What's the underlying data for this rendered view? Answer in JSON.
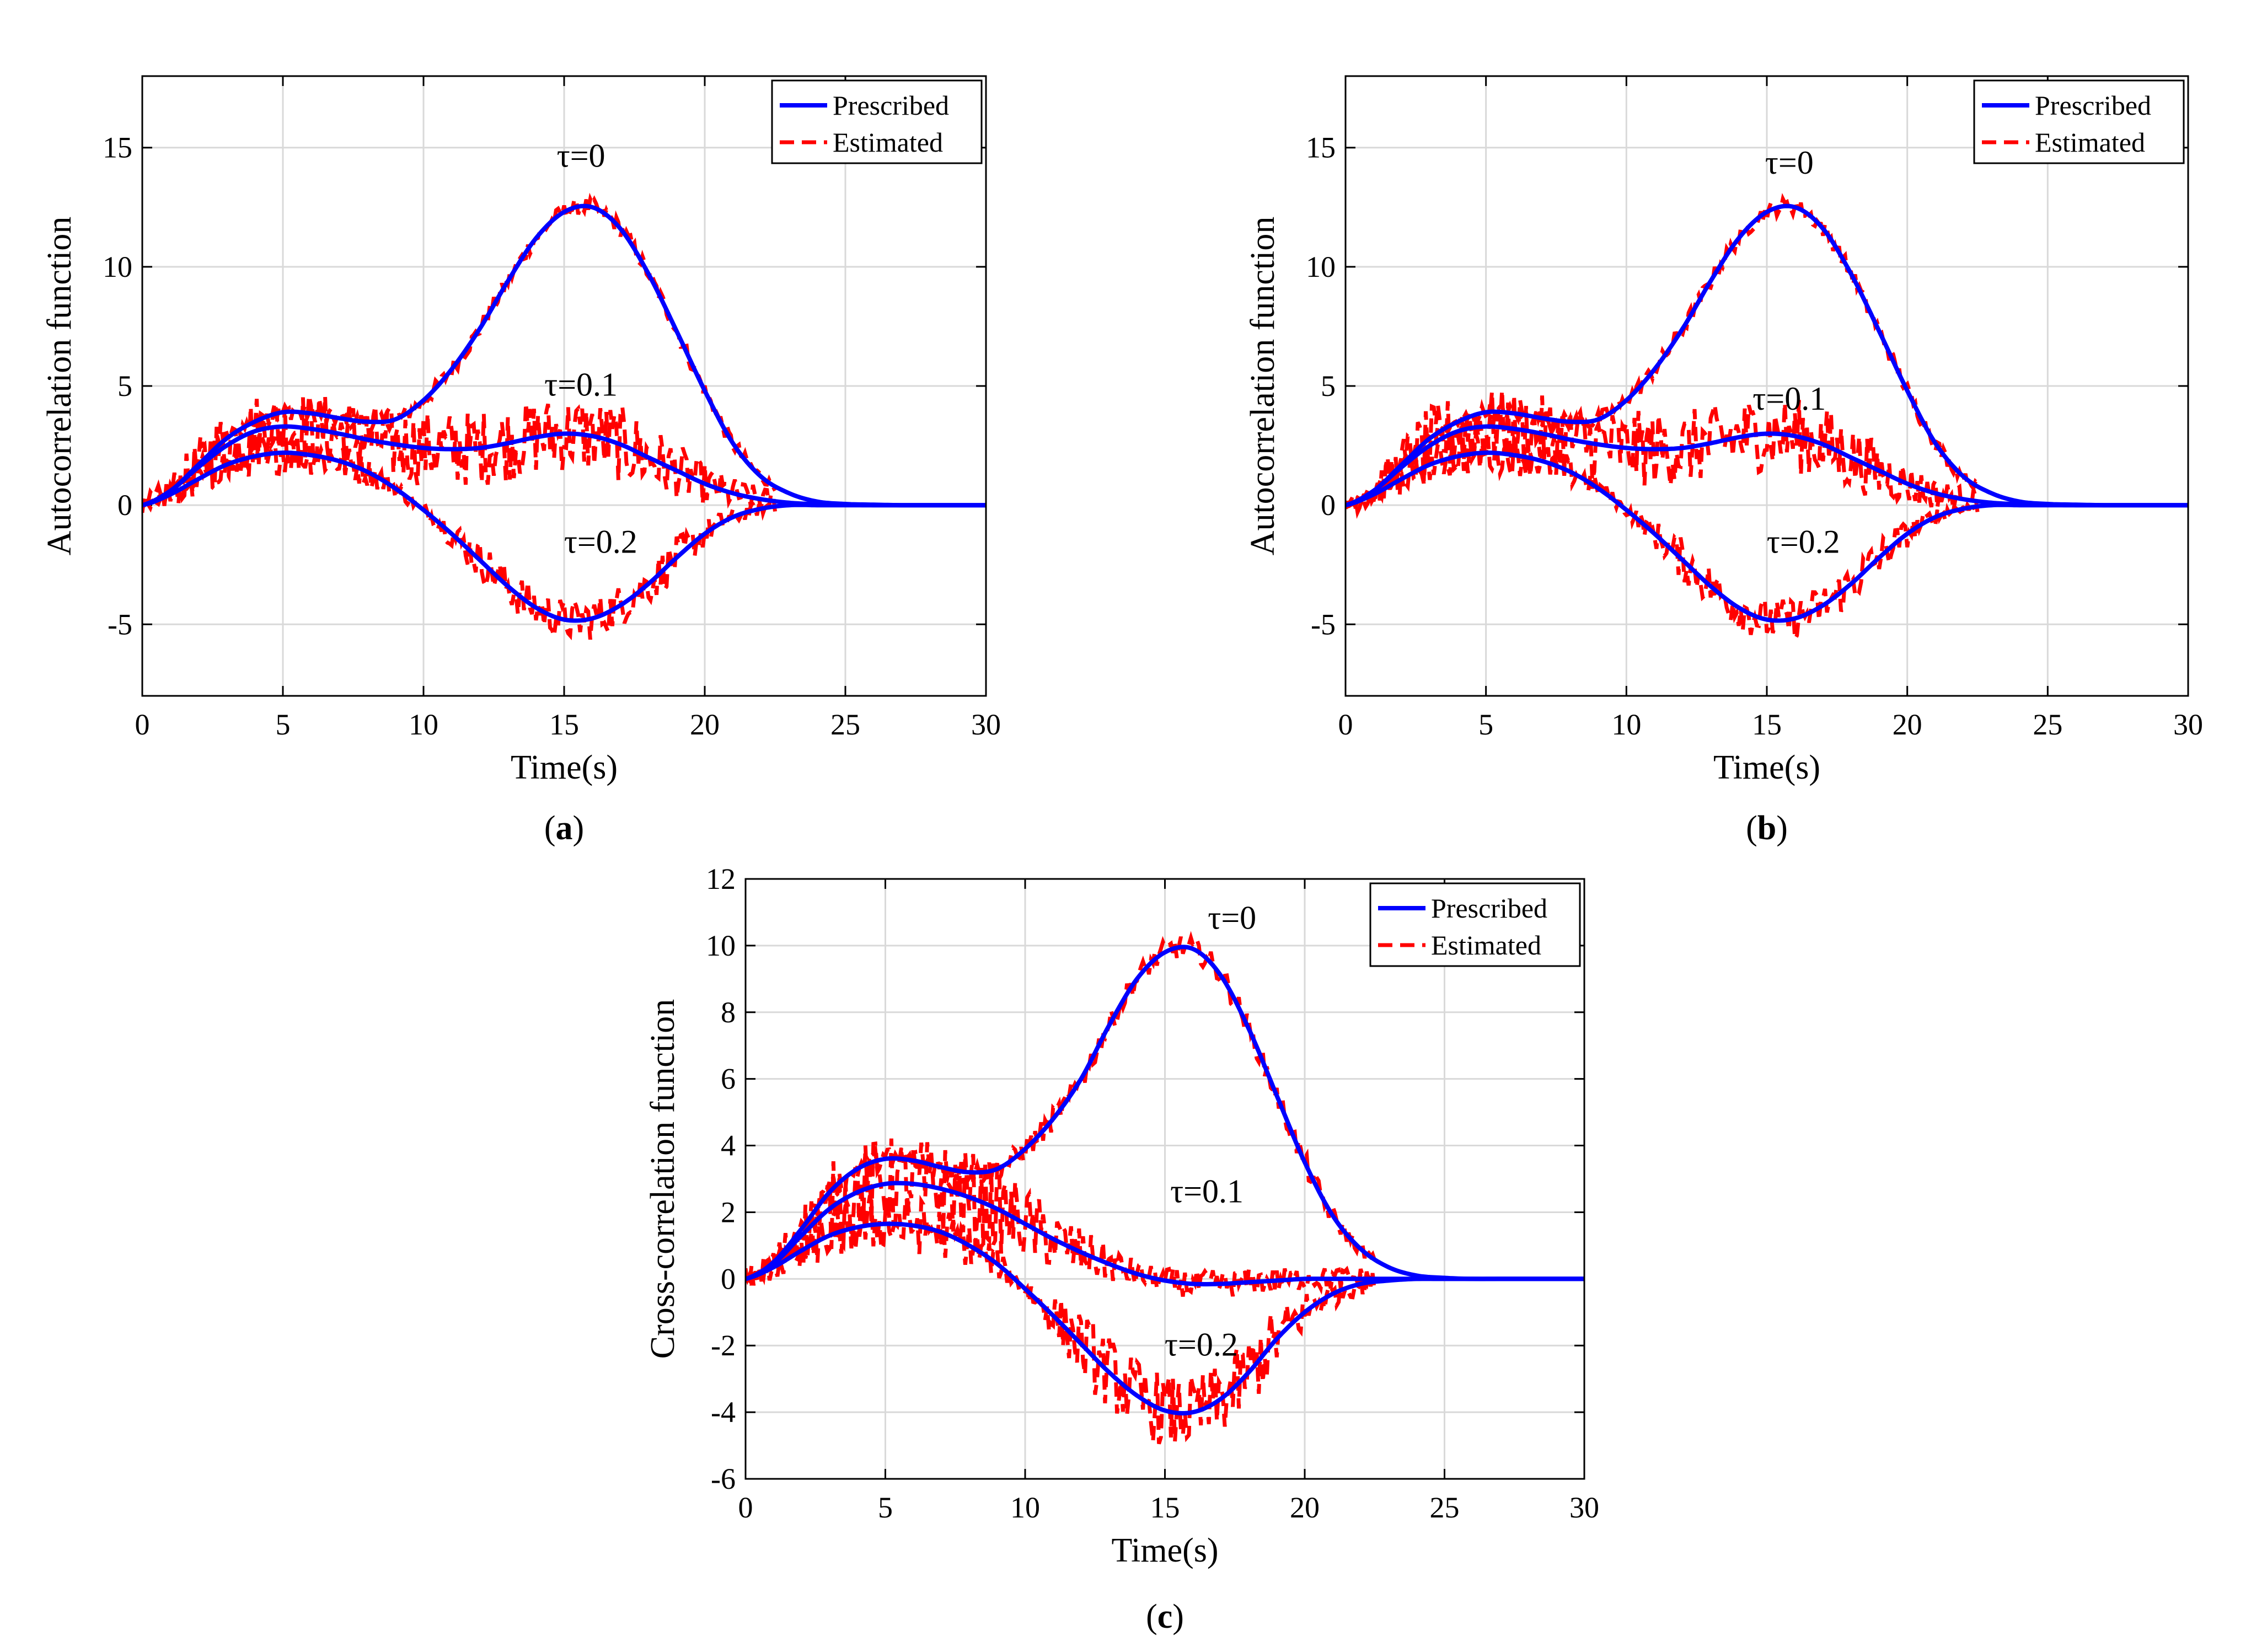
{
  "chart_data": [
    {
      "id": "a",
      "type": "line",
      "panel_label": "a",
      "xlabel": "Time(s)",
      "ylabel": "Autocorrelation function",
      "xlim": [
        0,
        30
      ],
      "ylim": [
        -8,
        18
      ],
      "xticks": [
        0,
        5,
        10,
        15,
        20,
        25,
        30
      ],
      "yticks": [
        -5,
        0,
        5,
        10,
        15
      ],
      "grid": true,
      "legend": {
        "position": "top-right",
        "entries": [
          "Prescribed",
          "Estimated"
        ]
      },
      "colors": {
        "prescribed": "#0000ff",
        "estimated": "#ff0000"
      },
      "annotations": [
        {
          "text": "τ=0",
          "x": 15.6,
          "y": 14.2
        },
        {
          "text": "τ=0.1",
          "x": 15.6,
          "y": 4.6
        },
        {
          "text": "τ=0.2",
          "x": 16.3,
          "y": -2.0
        }
      ],
      "series": [
        {
          "name": "Prescribed",
          "curve": "τ=0",
          "x": [
            0,
            1,
            2,
            3,
            4,
            5,
            6,
            7,
            8,
            9,
            10,
            11,
            12,
            13,
            14,
            15,
            16,
            17,
            18,
            19,
            20,
            21,
            22,
            23,
            24,
            25,
            26,
            27,
            28,
            29,
            30
          ],
          "y": [
            0,
            0.6,
            1.7,
            2.8,
            3.5,
            3.9,
            3.85,
            3.65,
            3.5,
            3.6,
            4.4,
            5.7,
            7.4,
            9.4,
            11.2,
            12.3,
            12.5,
            11.6,
            9.7,
            7.3,
            4.8,
            2.6,
            1.2,
            0.5,
            0.15,
            0.05,
            0.02,
            0,
            0,
            0,
            0
          ]
        },
        {
          "name": "Prescribed",
          "curve": "τ=0.1",
          "x": [
            0,
            1,
            2,
            3,
            4,
            5,
            6,
            7,
            8,
            9,
            10,
            11,
            12,
            13,
            14,
            15,
            16,
            17,
            18,
            19,
            20,
            21,
            22,
            23,
            24,
            25,
            26,
            27,
            28,
            29,
            30
          ],
          "y": [
            0,
            0.6,
            1.6,
            2.5,
            3.1,
            3.3,
            3.2,
            3.0,
            2.75,
            2.55,
            2.4,
            2.35,
            2.4,
            2.6,
            2.85,
            3.0,
            2.9,
            2.55,
            2.0,
            1.45,
            0.9,
            0.5,
            0.25,
            0.1,
            0.04,
            0.01,
            0,
            0,
            0,
            0,
            0
          ]
        },
        {
          "name": "Prescribed",
          "curve": "τ=0.2",
          "x": [
            0,
            1,
            2,
            3,
            4,
            5,
            6,
            7,
            8,
            9,
            10,
            11,
            12,
            13,
            14,
            15,
            16,
            17,
            18,
            19,
            20,
            21,
            22,
            23,
            24,
            25,
            26,
            27,
            28,
            29,
            30
          ],
          "y": [
            0,
            0.45,
            1.1,
            1.7,
            2.05,
            2.2,
            2.1,
            1.85,
            1.4,
            0.7,
            -0.2,
            -1.2,
            -2.3,
            -3.4,
            -4.3,
            -4.8,
            -4.75,
            -4.2,
            -3.3,
            -2.2,
            -1.2,
            -0.5,
            -0.15,
            0,
            0,
            0,
            0,
            0,
            0,
            0,
            0
          ]
        }
      ],
      "estimated_noise": [
        0.35,
        1.6,
        0.9
      ]
    },
    {
      "id": "b",
      "type": "line",
      "panel_label": "b",
      "xlabel": "Time(s)",
      "ylabel": "Autocorrelation function",
      "xlim": [
        0,
        30
      ],
      "ylim": [
        -8,
        18
      ],
      "xticks": [
        0,
        5,
        10,
        15,
        20,
        25,
        30
      ],
      "yticks": [
        -5,
        0,
        5,
        10,
        15
      ],
      "grid": true,
      "legend": {
        "position": "top-right",
        "entries": [
          "Prescribed",
          "Estimated"
        ]
      },
      "colors": {
        "prescribed": "#0000ff",
        "estimated": "#ff0000"
      },
      "annotations": [
        {
          "text": "τ=0",
          "x": 15.8,
          "y": 13.9
        },
        {
          "text": "τ=0.1",
          "x": 15.8,
          "y": 4.0
        },
        {
          "text": "τ=0.2",
          "x": 16.3,
          "y": -2.0
        }
      ],
      "series": [
        {
          "name": "Prescribed",
          "curve": "τ=0",
          "x": [
            0,
            1,
            2,
            3,
            4,
            5,
            6,
            7,
            8,
            9,
            10,
            11,
            12,
            13,
            14,
            15,
            16,
            17,
            18,
            19,
            20,
            21,
            22,
            23,
            24,
            25,
            26,
            27,
            28,
            29,
            30
          ],
          "y": [
            0,
            0.6,
            1.7,
            2.8,
            3.5,
            3.9,
            3.85,
            3.65,
            3.5,
            3.6,
            4.4,
            5.7,
            7.4,
            9.4,
            11.2,
            12.3,
            12.5,
            11.6,
            9.7,
            7.3,
            4.8,
            2.6,
            1.2,
            0.5,
            0.15,
            0.05,
            0.02,
            0,
            0,
            0,
            0
          ]
        },
        {
          "name": "Prescribed",
          "curve": "τ=0.1",
          "x": [
            0,
            1,
            2,
            3,
            4,
            5,
            6,
            7,
            8,
            9,
            10,
            11,
            12,
            13,
            14,
            15,
            16,
            17,
            18,
            19,
            20,
            21,
            22,
            23,
            24,
            25,
            26,
            27,
            28,
            29,
            30
          ],
          "y": [
            0,
            0.6,
            1.6,
            2.5,
            3.1,
            3.3,
            3.2,
            3.0,
            2.75,
            2.55,
            2.4,
            2.35,
            2.4,
            2.6,
            2.85,
            3.0,
            2.9,
            2.55,
            2.0,
            1.45,
            0.9,
            0.5,
            0.25,
            0.1,
            0.04,
            0.01,
            0,
            0,
            0,
            0,
            0
          ]
        },
        {
          "name": "Prescribed",
          "curve": "τ=0.2",
          "x": [
            0,
            1,
            2,
            3,
            4,
            5,
            6,
            7,
            8,
            9,
            10,
            11,
            12,
            13,
            14,
            15,
            16,
            17,
            18,
            19,
            20,
            21,
            22,
            23,
            24,
            25,
            26,
            27,
            28,
            29,
            30
          ],
          "y": [
            0,
            0.45,
            1.1,
            1.7,
            2.05,
            2.2,
            2.1,
            1.85,
            1.4,
            0.7,
            -0.2,
            -1.2,
            -2.3,
            -3.4,
            -4.3,
            -4.8,
            -4.75,
            -4.2,
            -3.3,
            -2.2,
            -1.2,
            -0.5,
            -0.15,
            0,
            0,
            0,
            0,
            0,
            0,
            0,
            0
          ]
        }
      ],
      "estimated_noise": [
        0.35,
        1.6,
        0.9
      ]
    },
    {
      "id": "c",
      "type": "line",
      "panel_label": "c",
      "xlabel": "Time(s)",
      "ylabel": "Cross-correlation function",
      "xlim": [
        0,
        30
      ],
      "ylim": [
        -6,
        12
      ],
      "xticks": [
        0,
        5,
        10,
        15,
        20,
        25,
        30
      ],
      "yticks": [
        -6,
        -4,
        -2,
        0,
        2,
        4,
        6,
        8,
        10,
        12
      ],
      "grid": true,
      "legend": {
        "position": "top-right",
        "entries": [
          "Prescribed",
          "Estimated"
        ]
      },
      "colors": {
        "prescribed": "#0000ff",
        "estimated": "#ff0000"
      },
      "annotations": [
        {
          "text": "τ=0",
          "x": 17.4,
          "y": 10.5
        },
        {
          "text": "τ=0.1",
          "x": 16.5,
          "y": 2.3
        },
        {
          "text": "τ=0.2",
          "x": 16.3,
          "y": -2.3
        }
      ],
      "series": [
        {
          "name": "Prescribed",
          "curve": "τ=0",
          "x": [
            0,
            1,
            2,
            3,
            4,
            5,
            6,
            7,
            8,
            9,
            10,
            11,
            12,
            13,
            14,
            15,
            16,
            17,
            18,
            19,
            20,
            21,
            22,
            23,
            24,
            25,
            26,
            27,
            28,
            29,
            30
          ],
          "y": [
            0,
            0.5,
            1.5,
            2.6,
            3.3,
            3.6,
            3.55,
            3.35,
            3.2,
            3.3,
            3.9,
            4.8,
            6.0,
            7.6,
            9.0,
            9.8,
            9.9,
            9.1,
            7.5,
            5.5,
            3.5,
            1.9,
            0.9,
            0.35,
            0.1,
            0.03,
            0,
            0,
            0,
            0,
            0
          ]
        },
        {
          "name": "Prescribed",
          "curve": "τ=0.1",
          "x": [
            0,
            1,
            2,
            3,
            4,
            5,
            6,
            7,
            8,
            9,
            10,
            11,
            12,
            13,
            14,
            15,
            16,
            17,
            18,
            19,
            20,
            21,
            22,
            23,
            24,
            25,
            26,
            27,
            28,
            29,
            30
          ],
          "y": [
            0,
            0.45,
            1.3,
            2.1,
            2.6,
            2.85,
            2.85,
            2.7,
            2.45,
            2.1,
            1.65,
            1.2,
            0.8,
            0.45,
            0.15,
            -0.05,
            -0.15,
            -0.15,
            -0.1,
            -0.05,
            0,
            0,
            0,
            0,
            0,
            0,
            0,
            0,
            0,
            0,
            0
          ]
        },
        {
          "name": "Prescribed",
          "curve": "τ=0.2",
          "x": [
            0,
            1,
            2,
            3,
            4,
            5,
            6,
            7,
            8,
            9,
            10,
            11,
            12,
            13,
            14,
            15,
            16,
            17,
            18,
            19,
            20,
            21,
            22,
            23,
            24,
            25,
            26,
            27,
            28,
            29,
            30
          ],
          "y": [
            0,
            0.35,
            0.85,
            1.3,
            1.55,
            1.65,
            1.6,
            1.4,
            1.0,
            0.45,
            -0.3,
            -1.1,
            -1.95,
            -2.8,
            -3.5,
            -3.95,
            -4.0,
            -3.6,
            -2.8,
            -1.8,
            -1.0,
            -0.45,
            -0.15,
            -0.05,
            0,
            0,
            0,
            0,
            0,
            0,
            0
          ]
        }
      ],
      "estimated_noise": [
        0.35,
        1.4,
        1.1
      ]
    }
  ]
}
